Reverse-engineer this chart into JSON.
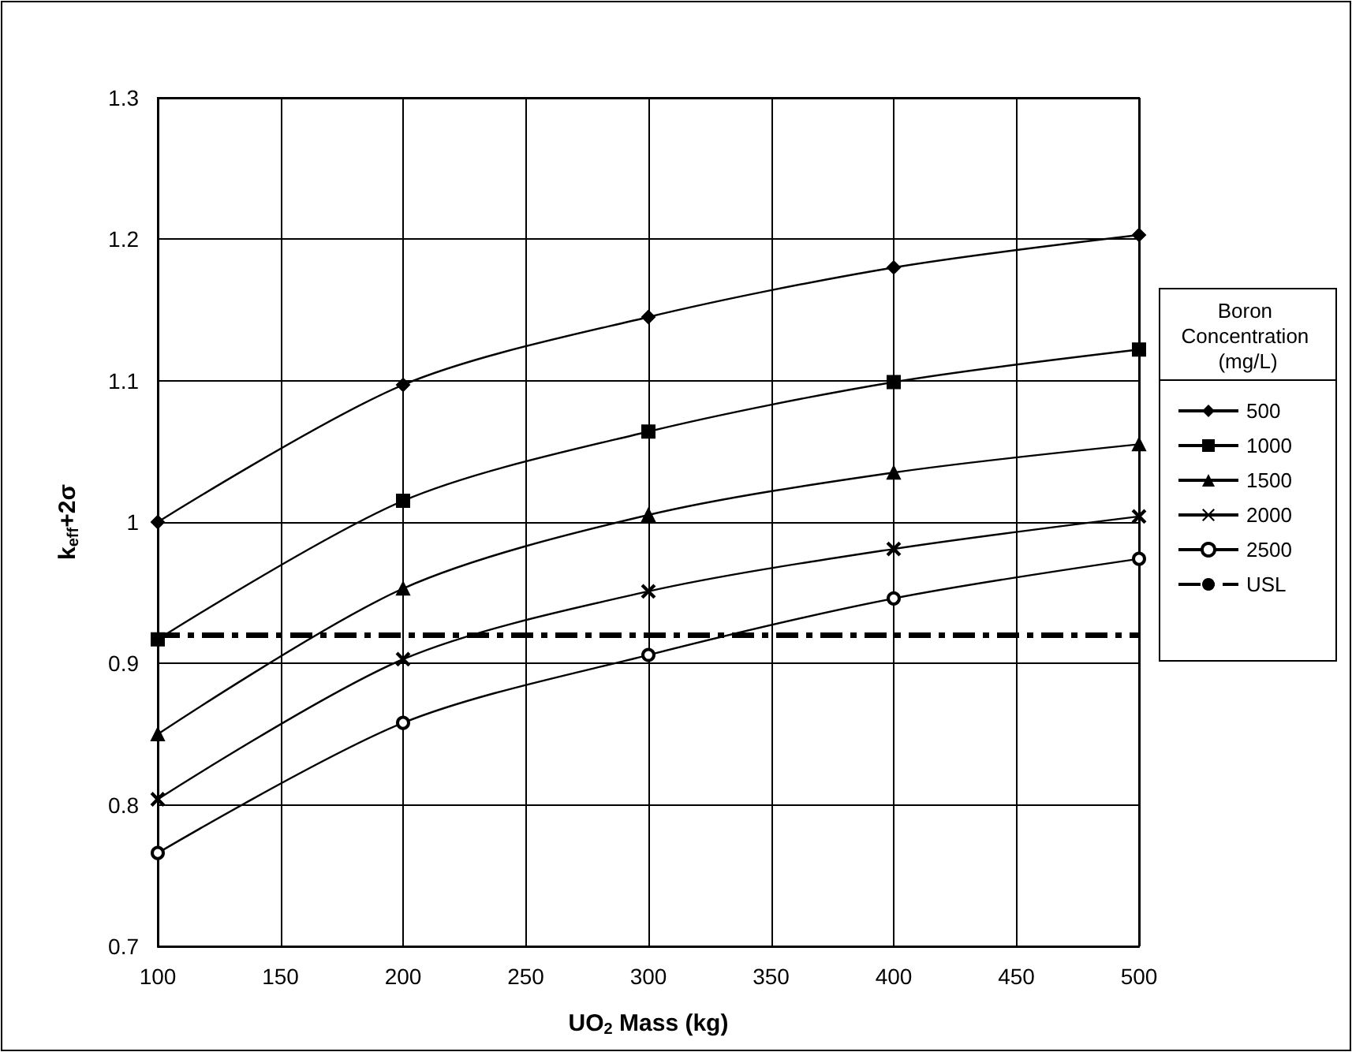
{
  "chart_data": {
    "type": "line",
    "xlabel": "UO$_{2}$ Mass (kg)",
    "ylabel": "k$_{eff}$+2σ",
    "legend_title": "Boron Concentration (mg/L)",
    "x": [
      100,
      200,
      300,
      400,
      500
    ],
    "series": [
      {
        "name": "500",
        "color": "#000000",
        "marker": "diamond",
        "values": [
          1.0,
          1.097,
          1.145,
          1.18,
          1.203
        ]
      },
      {
        "name": "1000",
        "color": "#000000",
        "marker": "square",
        "values": [
          0.917,
          1.015,
          1.064,
          1.099,
          1.122
        ]
      },
      {
        "name": "1500",
        "color": "#000000",
        "marker": "triangle",
        "values": [
          0.85,
          0.953,
          1.005,
          1.035,
          1.055
        ]
      },
      {
        "name": "2000",
        "color": "#000000",
        "marker": "cross",
        "values": [
          0.804,
          0.903,
          0.951,
          0.981,
          1.004
        ]
      },
      {
        "name": "2500",
        "color": "#000000",
        "marker": "circle",
        "values": [
          0.766,
          0.858,
          0.906,
          0.946,
          0.974
        ]
      }
    ],
    "ref_lines": [
      {
        "axis": "y",
        "value": 0.92,
        "label": "USL",
        "color": "#000000",
        "line_style": "dashed"
      }
    ],
    "xlim": [
      100,
      500
    ],
    "xticks": [
      100,
      150,
      200,
      250,
      300,
      350,
      400,
      450,
      500
    ],
    "ylim": [
      0.7,
      1.3
    ],
    "yticks": [
      0.7,
      0.8,
      0.9,
      1,
      1.1,
      1.2,
      1.3
    ],
    "grid": true,
    "legend": "right"
  }
}
